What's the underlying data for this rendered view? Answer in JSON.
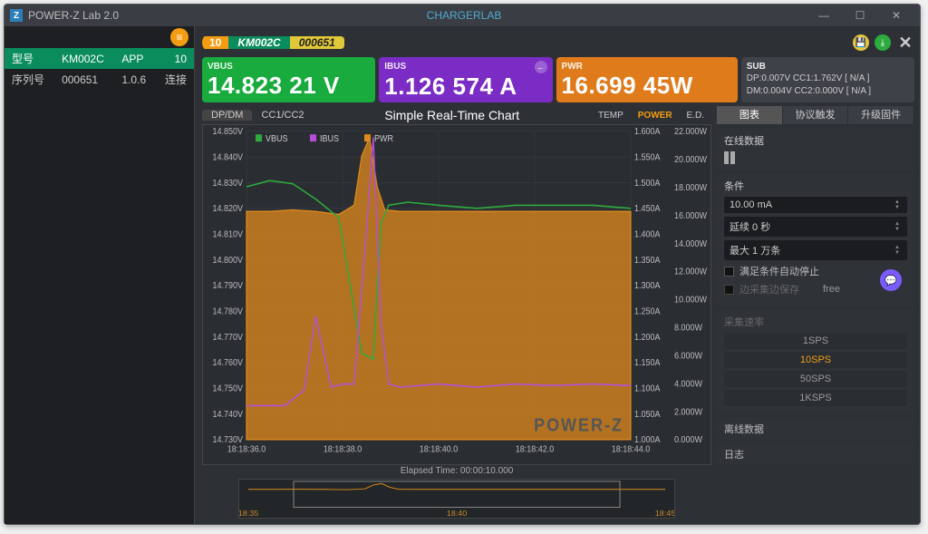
{
  "window": {
    "title": "POWER-Z Lab 2.0",
    "brand": "CHARGERLAB"
  },
  "left": {
    "row1": [
      "型号",
      "KM002C",
      "APP",
      "10"
    ],
    "row2": [
      "序列号",
      "000651",
      "1.0.6",
      "连接"
    ]
  },
  "pill": {
    "p1": "10",
    "p2": "KM002C",
    "p3": "000651"
  },
  "cards": {
    "vbus": {
      "lbl": "VBUS",
      "val": "14.823 21 V"
    },
    "ibus": {
      "lbl": "IBUS",
      "val": "1.126 574 A"
    },
    "pwr": {
      "lbl": "PWR",
      "val": "16.699 45W"
    },
    "sub": {
      "lbl": "SUB",
      "l1": "DP:0.007V CC1:1.762V [ N/A ]",
      "l2": "DM:0.004V CC2:0.000V [ N/A ]"
    }
  },
  "charttabs": {
    "a": "DP/DM",
    "b": "CC1/CC2",
    "title": "Simple Real-Time Chart",
    "r1": "TEMP",
    "r2": "POWER",
    "r3": "E.D."
  },
  "legend": {
    "v": "VBUS",
    "i": "IBUS",
    "p": "PWR"
  },
  "axes": {
    "left_ticks": [
      "14.850V",
      "14.840V",
      "14.830V",
      "14.820V",
      "14.810V",
      "14.800V",
      "14.790V",
      "14.780V",
      "14.770V",
      "14.760V",
      "14.750V",
      "14.740V",
      "14.730V"
    ],
    "right1_ticks": [
      "1.600A",
      "1.550A",
      "1.500A",
      "1.450A",
      "1.400A",
      "1.350A",
      "1.300A",
      "1.250A",
      "1.200A",
      "1.150A",
      "1.100A",
      "1.050A",
      "1.000A"
    ],
    "right2_ticks": [
      "22.000W",
      "20.000W",
      "18.000W",
      "16.000W",
      "14.000W",
      "12.000W",
      "10.000W",
      "8.000W",
      "6.000W",
      "4.000W",
      "2.000W",
      "0.000W"
    ],
    "x_ticks": [
      "18:18:36.0",
      "18:18:38.0",
      "18:18:40.0",
      "18:18:42.0",
      "18:18:44.0"
    ],
    "elapsed": "Elapsed Time: 00:00:10.000"
  },
  "series": {
    "vbus": {
      "color": "#2eab3e",
      "pts": [
        [
          0,
          0.18
        ],
        [
          0.06,
          0.16
        ],
        [
          0.12,
          0.17
        ],
        [
          0.18,
          0.22
        ],
        [
          0.24,
          0.28
        ],
        [
          0.3,
          0.72
        ],
        [
          0.33,
          0.74
        ],
        [
          0.35,
          0.3
        ],
        [
          0.37,
          0.24
        ],
        [
          0.42,
          0.23
        ],
        [
          0.5,
          0.24
        ],
        [
          0.6,
          0.25
        ],
        [
          0.7,
          0.24
        ],
        [
          0.8,
          0.24
        ],
        [
          0.9,
          0.24
        ],
        [
          1.0,
          0.25
        ]
      ]
    },
    "ibus": {
      "color": "#b74ed8",
      "pts": [
        [
          0,
          0.89
        ],
        [
          0.05,
          0.89
        ],
        [
          0.1,
          0.89
        ],
        [
          0.15,
          0.84
        ],
        [
          0.18,
          0.6
        ],
        [
          0.22,
          0.83
        ],
        [
          0.25,
          0.82
        ],
        [
          0.28,
          0.82
        ],
        [
          0.31,
          0.36
        ],
        [
          0.33,
          0.02
        ],
        [
          0.35,
          0.62
        ],
        [
          0.37,
          0.82
        ],
        [
          0.4,
          0.83
        ],
        [
          0.5,
          0.82
        ],
        [
          0.6,
          0.83
        ],
        [
          0.7,
          0.82
        ],
        [
          0.8,
          0.825
        ],
        [
          0.9,
          0.82
        ],
        [
          1.0,
          0.825
        ]
      ]
    },
    "pwr": {
      "color": "#e08a1c",
      "pts": [
        [
          0,
          0.26
        ],
        [
          0.06,
          0.26
        ],
        [
          0.12,
          0.255
        ],
        [
          0.18,
          0.26
        ],
        [
          0.24,
          0.27
        ],
        [
          0.28,
          0.24
        ],
        [
          0.3,
          0.08
        ],
        [
          0.32,
          0.02
        ],
        [
          0.34,
          0.18
        ],
        [
          0.36,
          0.255
        ],
        [
          0.4,
          0.26
        ],
        [
          0.5,
          0.26
        ],
        [
          0.6,
          0.26
        ],
        [
          0.7,
          0.26
        ],
        [
          0.8,
          0.26
        ],
        [
          0.9,
          0.26
        ],
        [
          1.0,
          0.26
        ]
      ]
    }
  },
  "watermark": "POWER-Z",
  "mini": {
    "ticks": [
      "18:35",
      "18:40",
      "18:45"
    ]
  },
  "rpanel": {
    "tabs": [
      "图表",
      "协议触发",
      "升级固件"
    ],
    "online": "在线数据",
    "cond": "条件",
    "c1": "10.00 mA",
    "c2": "延续 0 秒",
    "c3": "最大 1 万条",
    "chk1": "满足条件自动停止",
    "chk2": "边采集边保存",
    "free": "free",
    "rate": "采集速率",
    "sps": [
      "1SPS",
      "10SPS",
      "50SPS",
      "1KSPS"
    ],
    "offline": "离线数据",
    "log": "日志"
  },
  "colors": {
    "bg": "#2a2e33",
    "grid": "#3a3e44"
  }
}
